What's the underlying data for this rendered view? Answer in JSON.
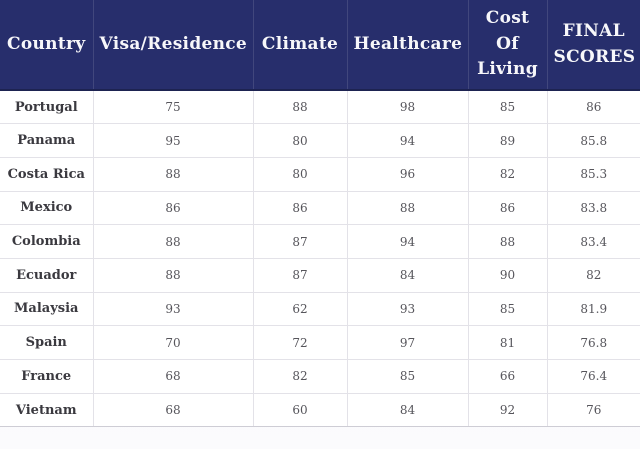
{
  "chart_data": {
    "type": "table",
    "columns": [
      "Country",
      "Visa/Residence",
      "Climate",
      "Healthcare",
      "Cost Of Living",
      "FINAL SCORES"
    ],
    "rows": [
      {
        "country": "Portugal",
        "values": [
          "75",
          "88",
          "98",
          "85",
          "86"
        ]
      },
      {
        "country": "Panama",
        "values": [
          "95",
          "80",
          "94",
          "89",
          "85.8"
        ]
      },
      {
        "country": "Costa Rica",
        "values": [
          "88",
          "80",
          "96",
          "82",
          "85.3"
        ]
      },
      {
        "country": "Mexico",
        "values": [
          "86",
          "86",
          "88",
          "86",
          "83.8"
        ]
      },
      {
        "country": "Colombia",
        "values": [
          "88",
          "87",
          "94",
          "88",
          "83.4"
        ]
      },
      {
        "country": "Ecuador",
        "values": [
          "88",
          "87",
          "84",
          "90",
          "82"
        ]
      },
      {
        "country": "Malaysia",
        "values": [
          "93",
          "62",
          "93",
          "85",
          "81.9"
        ]
      },
      {
        "country": "Spain",
        "values": [
          "70",
          "72",
          "97",
          "81",
          "76.8"
        ]
      },
      {
        "country": "France",
        "values": [
          "68",
          "82",
          "85",
          "66",
          "76.4"
        ]
      },
      {
        "country": "Vietnam",
        "values": [
          "68",
          "60",
          "84",
          "92",
          "76"
        ]
      }
    ]
  },
  "colors": {
    "header_background": "#272e6c",
    "header_text": "#f7f7fa",
    "grid_line": "#e3e2e8",
    "country_text": "#3a393f",
    "value_text": "#56555b"
  }
}
